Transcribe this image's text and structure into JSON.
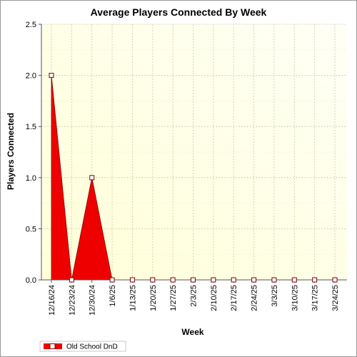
{
  "chart_data": {
    "type": "area",
    "title": "Average Players Connected By Week",
    "xlabel": "Week",
    "ylabel": "Players Connected",
    "categories": [
      "12/16/24",
      "12/23/24",
      "12/30/24",
      "1/6/25",
      "1/13/25",
      "1/20/25",
      "1/27/25",
      "2/3/25",
      "2/10/25",
      "2/17/25",
      "2/24/25",
      "3/3/25",
      "3/10/25",
      "3/17/25",
      "3/24/25"
    ],
    "series": [
      {
        "name": "Old School DnD",
        "values": [
          2.0,
          0.0,
          1.0,
          0.0,
          0.0,
          0.0,
          0.0,
          0.0,
          0.0,
          0.0,
          0.0,
          0.0,
          0.0,
          0.0,
          0.0
        ],
        "color": "#ee0000"
      }
    ],
    "ylim": [
      0,
      2.5
    ],
    "yticks": [
      "0.0",
      "0.5",
      "1.0",
      "1.5",
      "2.0",
      "2.5"
    ],
    "grid": true,
    "legend": "bottom-left",
    "plot_background": [
      "#ffffd8",
      "#fffff6"
    ]
  }
}
